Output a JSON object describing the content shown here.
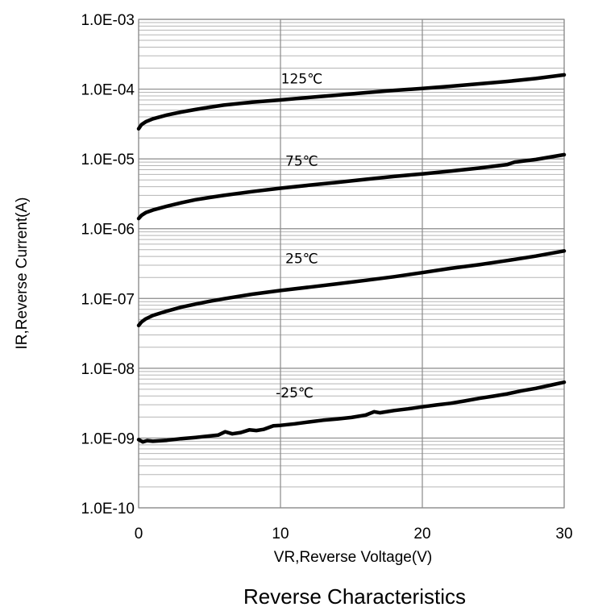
{
  "chart_data": {
    "type": "line",
    "caption": "Reverse Characteristics",
    "xlabel": "VR,Reverse Voltage(V)",
    "ylabel": "IR,Reverse Current(A)",
    "xlim": [
      0,
      30
    ],
    "ylim": [
      1e-10,
      0.001
    ],
    "yscale": "log",
    "grid": true,
    "x_ticks": [
      {
        "value": 0,
        "label": "0"
      },
      {
        "value": 10,
        "label": "10"
      },
      {
        "value": 20,
        "label": "20"
      },
      {
        "value": 30,
        "label": "30"
      }
    ],
    "y_ticks": [
      {
        "value": 1e-10,
        "label": "1.0E-10"
      },
      {
        "value": 1e-09,
        "label": "1.0E-09"
      },
      {
        "value": 1e-08,
        "label": "1.0E-08"
      },
      {
        "value": 1e-07,
        "label": "1.0E-07"
      },
      {
        "value": 1e-06,
        "label": "1.0E-06"
      },
      {
        "value": 1e-05,
        "label": "1.0E-05"
      },
      {
        "value": 0.0001,
        "label": "1.0E-04"
      },
      {
        "value": 0.001,
        "label": "1.0E-03"
      }
    ],
    "series": [
      {
        "name": "125℃",
        "label_at": {
          "x": 11.5,
          "y": 0.00012
        },
        "points": [
          [
            0,
            2.7e-05
          ],
          [
            0.2,
            3.1e-05
          ],
          [
            0.5,
            3.4e-05
          ],
          [
            1,
            3.75e-05
          ],
          [
            2,
            4.25e-05
          ],
          [
            3,
            4.7e-05
          ],
          [
            4,
            5.1e-05
          ],
          [
            5,
            5.5e-05
          ],
          [
            6,
            5.9e-05
          ],
          [
            8,
            6.5e-05
          ],
          [
            10,
            7e-05
          ],
          [
            12,
            7.6e-05
          ],
          [
            14,
            8.2e-05
          ],
          [
            16,
            8.9e-05
          ],
          [
            18,
            9.6e-05
          ],
          [
            20,
            0.000102
          ],
          [
            22,
            0.00011
          ],
          [
            24,
            0.000119
          ],
          [
            26,
            0.000129
          ],
          [
            28,
            0.000142
          ],
          [
            30,
            0.00016
          ]
        ]
      },
      {
        "name": "75℃",
        "label_at": {
          "x": 11.5,
          "y": 8e-06
        },
        "points": [
          [
            0,
            1.4e-06
          ],
          [
            0.2,
            1.55e-06
          ],
          [
            0.5,
            1.7e-06
          ],
          [
            1,
            1.85e-06
          ],
          [
            2,
            2.1e-06
          ],
          [
            3,
            2.35e-06
          ],
          [
            4,
            2.6e-06
          ],
          [
            5,
            2.8e-06
          ],
          [
            6,
            3e-06
          ],
          [
            8,
            3.4e-06
          ],
          [
            10,
            3.8e-06
          ],
          [
            12,
            4.2e-06
          ],
          [
            14,
            4.6e-06
          ],
          [
            16,
            5.1e-06
          ],
          [
            18,
            5.6e-06
          ],
          [
            20,
            6.1e-06
          ],
          [
            22,
            6.7e-06
          ],
          [
            24,
            7.4e-06
          ],
          [
            26,
            8.3e-06
          ],
          [
            26.5,
            9e-06
          ],
          [
            28,
            9.8e-06
          ],
          [
            30,
            1.15e-05
          ]
        ]
      },
      {
        "name": "25℃",
        "label_at": {
          "x": 11.5,
          "y": 3.2e-07
        },
        "points": [
          [
            0,
            4.1e-08
          ],
          [
            0.2,
            4.6e-08
          ],
          [
            0.5,
            5.1e-08
          ],
          [
            1,
            5.7e-08
          ],
          [
            2,
            6.6e-08
          ],
          [
            3,
            7.5e-08
          ],
          [
            4,
            8.3e-08
          ],
          [
            5,
            9.1e-08
          ],
          [
            6,
            9.9e-08
          ],
          [
            8,
            1.15e-07
          ],
          [
            10,
            1.3e-07
          ],
          [
            12,
            1.45e-07
          ],
          [
            14,
            1.62e-07
          ],
          [
            16,
            1.82e-07
          ],
          [
            18,
            2.05e-07
          ],
          [
            20,
            2.35e-07
          ],
          [
            22,
            2.7e-07
          ],
          [
            24,
            3.05e-07
          ],
          [
            26,
            3.5e-07
          ],
          [
            28,
            4.05e-07
          ],
          [
            30,
            4.8e-07
          ]
        ]
      },
      {
        "name": "-25℃",
        "label_at": {
          "x": 11.0,
          "y": 3.8e-09
        },
        "points": [
          [
            0,
            9.5e-10
          ],
          [
            0.3,
            8.8e-10
          ],
          [
            0.6,
            9.2e-10
          ],
          [
            1,
            9e-10
          ],
          [
            2,
            9.3e-10
          ],
          [
            3,
            9.8e-10
          ],
          [
            4,
            1.02e-09
          ],
          [
            5,
            1.07e-09
          ],
          [
            5.6,
            1.1e-09
          ],
          [
            6.1,
            1.23e-09
          ],
          [
            6.6,
            1.15e-09
          ],
          [
            7.2,
            1.2e-09
          ],
          [
            7.8,
            1.31e-09
          ],
          [
            8.3,
            1.28e-09
          ],
          [
            8.8,
            1.33e-09
          ],
          [
            9.5,
            1.5e-09
          ],
          [
            10,
            1.52e-09
          ],
          [
            11,
            1.6e-09
          ],
          [
            12,
            1.7e-09
          ],
          [
            13,
            1.8e-09
          ],
          [
            14,
            1.88e-09
          ],
          [
            15,
            1.97e-09
          ],
          [
            16,
            2.13e-09
          ],
          [
            16.6,
            2.38e-09
          ],
          [
            17,
            2.3e-09
          ],
          [
            18,
            2.48e-09
          ],
          [
            19,
            2.62e-09
          ],
          [
            20,
            2.8e-09
          ],
          [
            21,
            2.98e-09
          ],
          [
            22,
            3.15e-09
          ],
          [
            23,
            3.4e-09
          ],
          [
            24,
            3.7e-09
          ],
          [
            25,
            3.98e-09
          ],
          [
            26,
            4.3e-09
          ],
          [
            27,
            4.75e-09
          ],
          [
            28,
            5.15e-09
          ],
          [
            29,
            5.7e-09
          ],
          [
            30,
            6.3e-09
          ]
        ]
      }
    ]
  }
}
